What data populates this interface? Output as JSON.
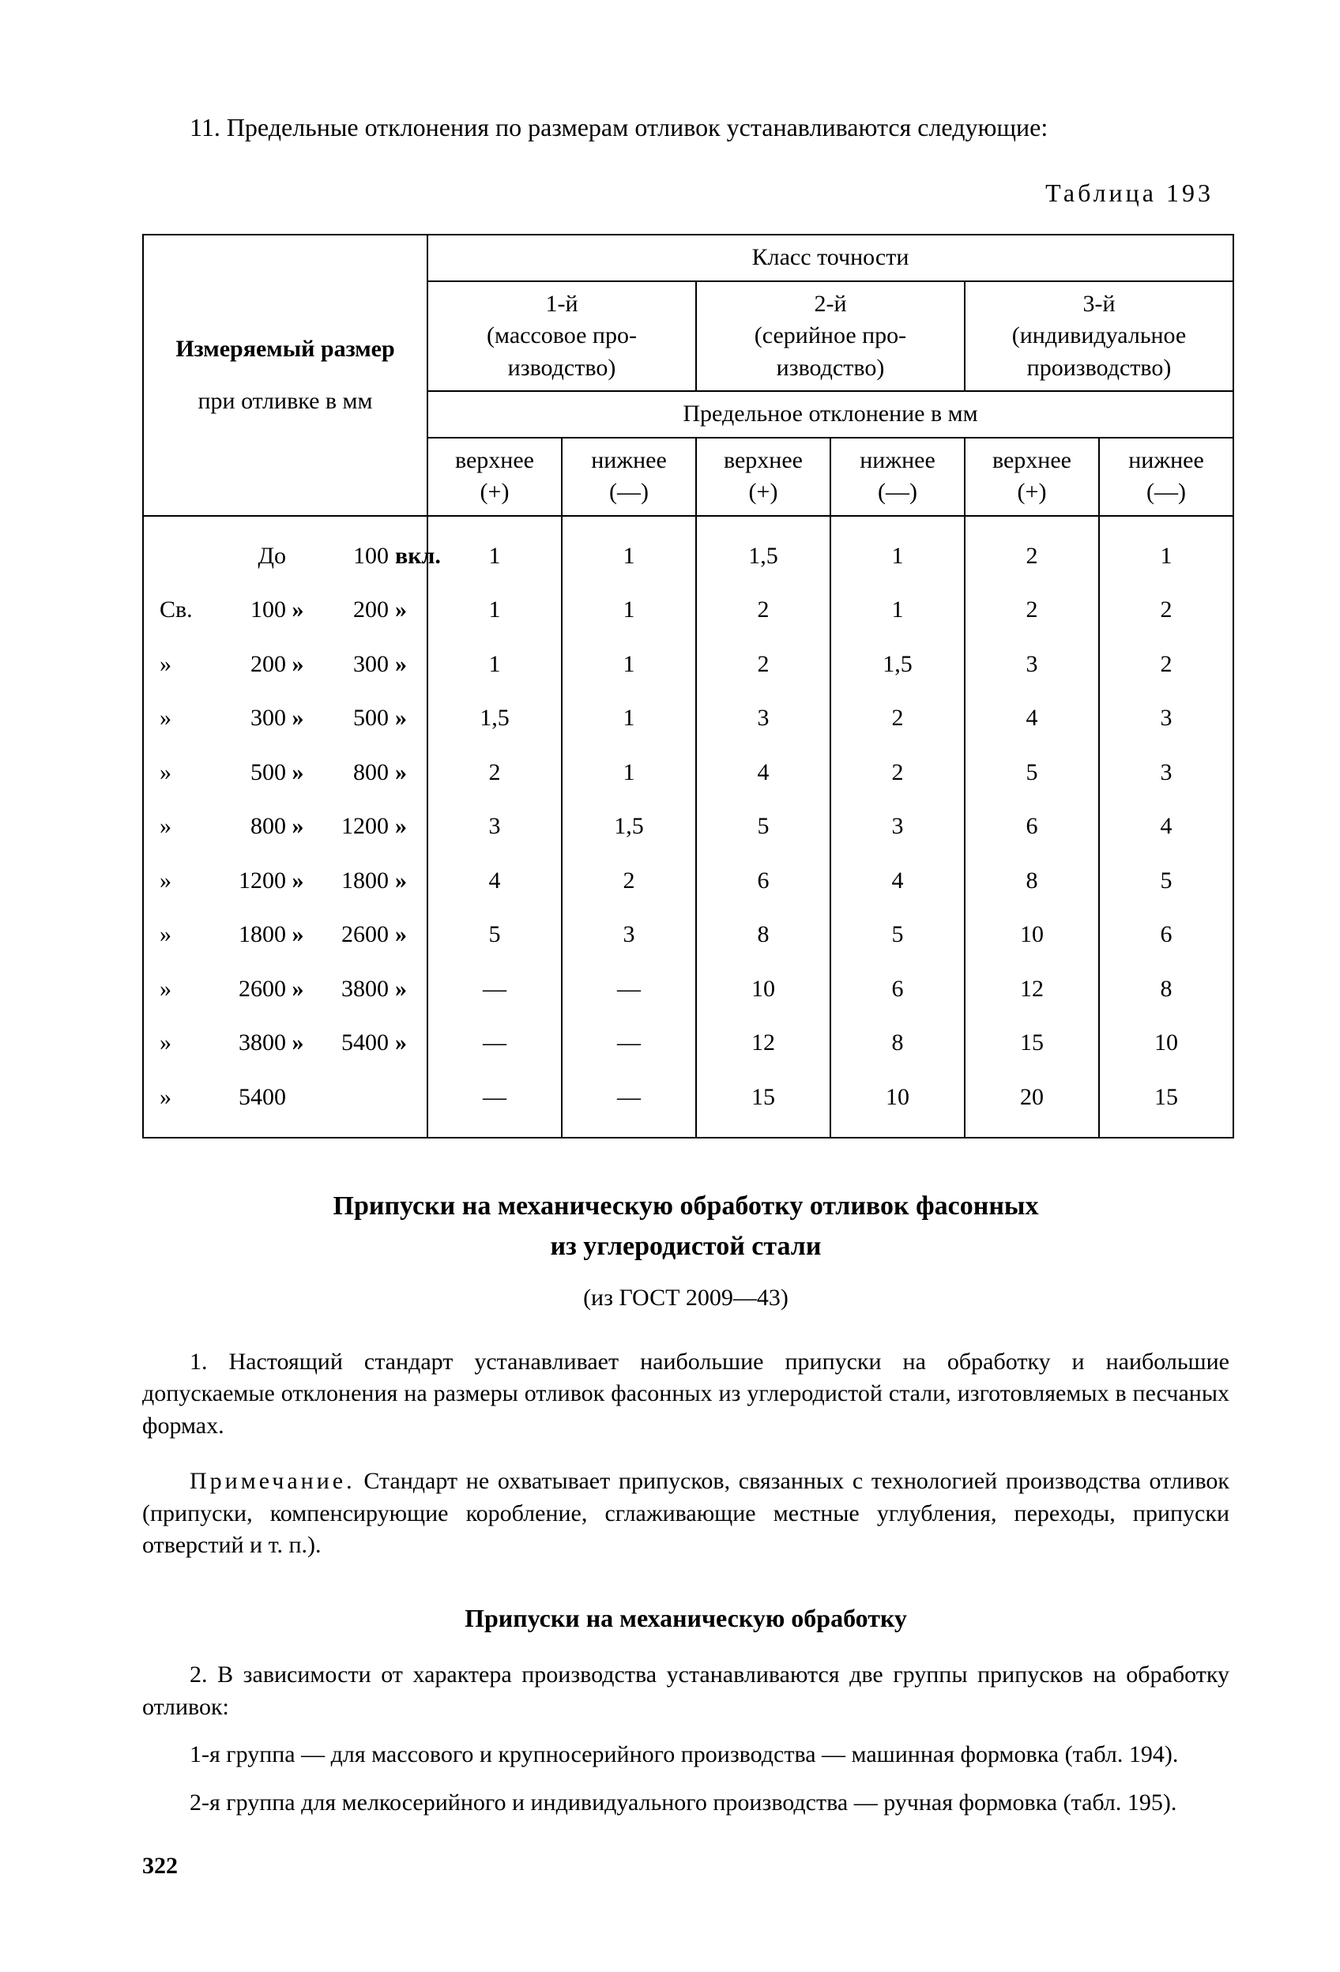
{
  "intro": "11. Предельные отклонения по размерам отливок устанавливаются следующие:",
  "table_label": "Таблица 193",
  "table": {
    "row_header_1": "Измеряемый размер",
    "row_header_2": "при отливке в мм",
    "super_header": "Класс точности",
    "classes": [
      {
        "top": "1-й",
        "sub": "(массовое про-<br>изводство)"
      },
      {
        "top": "2-й",
        "sub": "(серийное про-<br>изводство)"
      },
      {
        "top": "3-й",
        "sub": "(индивидуальное производство)"
      }
    ],
    "deviation_header": "Предельное отклонение в мм",
    "col_sub": [
      "верхнее<br>(+)",
      "нижнее<br>(—)",
      "верхнее<br>(+)",
      "нижнее<br>(—)",
      "верхнее<br>(+)",
      "нижнее<br>(—)"
    ],
    "rows": [
      {
        "label": {
          "prefix": "",
          "from": "До",
          "arrow": "",
          "to": "100",
          "suffix": "вкл."
        },
        "v": [
          "1",
          "1",
          "1,5",
          "1",
          "2",
          "1"
        ]
      },
      {
        "label": {
          "prefix": "Св.",
          "from": "100",
          "arrow": "»",
          "to": "200",
          "suffix": "»"
        },
        "v": [
          "1",
          "1",
          "2",
          "1",
          "2",
          "2"
        ]
      },
      {
        "label": {
          "prefix": "»",
          "from": "200",
          "arrow": "»",
          "to": "300",
          "suffix": "»"
        },
        "v": [
          "1",
          "1",
          "2",
          "1,5",
          "3",
          "2"
        ]
      },
      {
        "label": {
          "prefix": "»",
          "from": "300",
          "arrow": "»",
          "to": "500",
          "suffix": "»"
        },
        "v": [
          "1,5",
          "1",
          "3",
          "2",
          "4",
          "3"
        ]
      },
      {
        "label": {
          "prefix": "»",
          "from": "500",
          "arrow": "»",
          "to": "800",
          "suffix": "»"
        },
        "v": [
          "2",
          "1",
          "4",
          "2",
          "5",
          "3"
        ]
      },
      {
        "label": {
          "prefix": "»",
          "from": "800",
          "arrow": "»",
          "to": "1200",
          "suffix": "»"
        },
        "v": [
          "3",
          "1,5",
          "5",
          "3",
          "6",
          "4"
        ]
      },
      {
        "label": {
          "prefix": "»",
          "from": "1200",
          "arrow": "»",
          "to": "1800",
          "suffix": "»"
        },
        "v": [
          "4",
          "2",
          "6",
          "4",
          "8",
          "5"
        ]
      },
      {
        "label": {
          "prefix": "»",
          "from": "1800",
          "arrow": "»",
          "to": "2600",
          "suffix": "»"
        },
        "v": [
          "5",
          "3",
          "8",
          "5",
          "10",
          "6"
        ]
      },
      {
        "label": {
          "prefix": "»",
          "from": "2600",
          "arrow": "»",
          "to": "3800",
          "suffix": "»"
        },
        "v": [
          "—",
          "—",
          "10",
          "6",
          "12",
          "8"
        ]
      },
      {
        "label": {
          "prefix": "»",
          "from": "3800",
          "arrow": "»",
          "to": "5400",
          "suffix": "»"
        },
        "v": [
          "—",
          "—",
          "12",
          "8",
          "15",
          "10"
        ]
      },
      {
        "label": {
          "prefix": "»",
          "from": "5400",
          "arrow": "",
          "to": "",
          "suffix": ""
        },
        "v": [
          "—",
          "—",
          "15",
          "10",
          "20",
          "15"
        ]
      }
    ]
  },
  "section_title_1": "Припуски на механическую обработку отливок фасонных",
  "section_title_2": "из углеродистой стали",
  "gost": "(из ГОСТ 2009—43)",
  "para1": "1. Настоящий стандарт устанавливает наибольшие припуски на обработку и наибольшие допускаемые отклонения на размеры отливок фасонных из углеродистой стали, изготовляемых в песчаных формах.",
  "note_label": "Примечание.",
  "note_text": " Стандарт не охватывает припусков, связанных с технологией производства отливок (припуски, компенсирующие коробление, сглаживающие местные углубления, переходы, припуски отверстий и т. п.).",
  "subsection_title": "Припуски на механическую обработку",
  "para2": "2. В зависимости от характера производства устанавливаются две группы припусков на обработку отливок:",
  "para3": "1-я группа — для массового и крупносерийного производства — машинная формовка (табл. 194).",
  "para4": "2-я группа для мелкосерийного и индивидуального производства — ручная формовка (табл. 195).",
  "page_number": "322"
}
